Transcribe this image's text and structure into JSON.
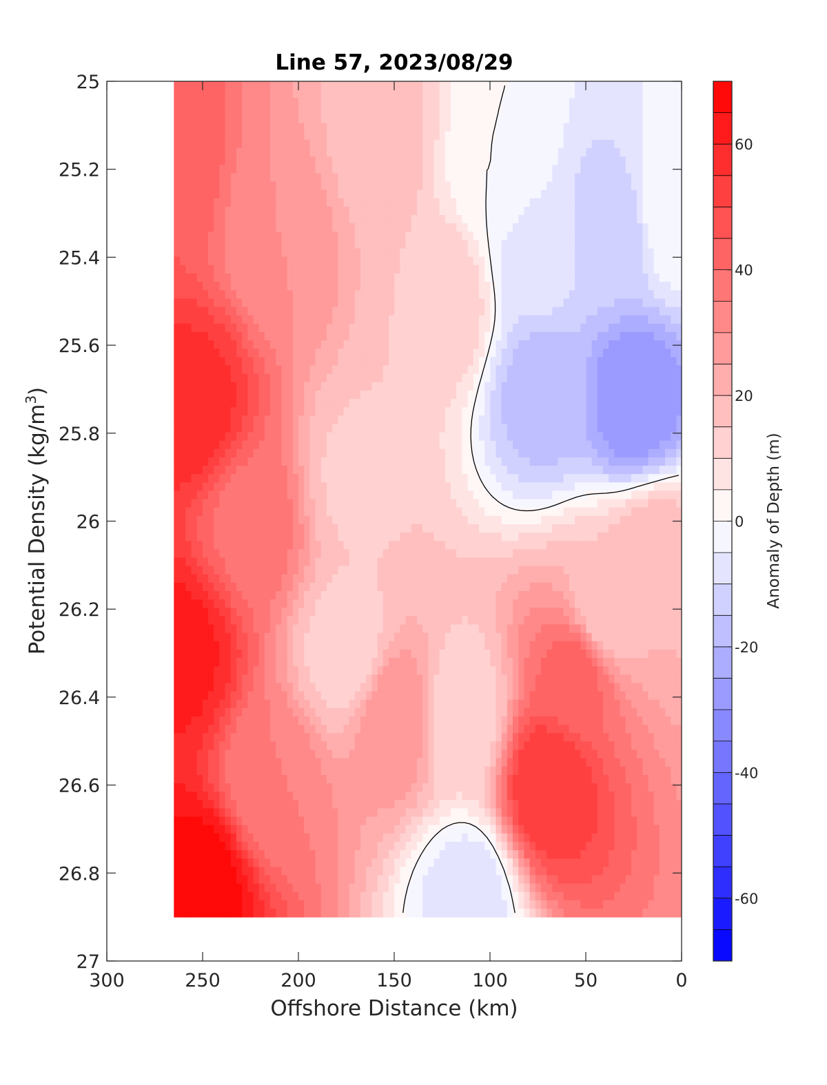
{
  "chart_data": {
    "type": "contour",
    "title": "Line 57, 2023/08/29",
    "xlabel": "Offshore Distance (km)",
    "ylabel_main": "Potential Density (kg/m",
    "ylabel_sup": "3",
    "ylabel_end": ")",
    "xlim": [
      0,
      300
    ],
    "x_reversed": true,
    "ylim": [
      25,
      27
    ],
    "y_reversed": true,
    "xticks": [
      300,
      250,
      200,
      150,
      100,
      50,
      0
    ],
    "xtick_labels": [
      "300",
      "250",
      "200",
      "150",
      "100",
      "50",
      "0"
    ],
    "yticks": [
      25,
      25.2,
      25.4,
      25.6,
      25.8,
      26,
      26.2,
      26.4,
      26.6,
      26.8,
      27
    ],
    "ytick_labels": [
      "25",
      "25.2",
      "25.4",
      "25.6",
      "25.8",
      "26",
      "26.2",
      "26.4",
      "26.6",
      "26.8",
      "27"
    ],
    "colorbar": {
      "label": "Anomaly of Depth (m)",
      "range": [
        -70,
        70
      ],
      "step": 5,
      "ticks": [
        60,
        40,
        20,
        0,
        -20,
        -40,
        -60
      ],
      "tick_labels": [
        "60",
        "40",
        "20",
        "0",
        "-20",
        "-40",
        "-60"
      ],
      "colormap": "blue-white-red"
    },
    "zero_contour": true,
    "data_coverage": {
      "x_range_km": [
        0,
        265
      ],
      "sigma_range": [
        25,
        26.9
      ]
    },
    "field_features": [
      {
        "x_km": 250,
        "sigma": 26.83,
        "value": 68
      },
      {
        "x_km": 262,
        "sigma": 26.3,
        "value": 62
      },
      {
        "x_km": 255,
        "sigma": 25.75,
        "value": 58
      },
      {
        "x_km": 270,
        "sigma": 25.2,
        "value": 45
      },
      {
        "x_km": 210,
        "sigma": 25.35,
        "value": 30
      },
      {
        "x_km": 225,
        "sigma": 26.0,
        "value": 38
      },
      {
        "x_km": 215,
        "sigma": 26.6,
        "value": 35
      },
      {
        "x_km": 160,
        "sigma": 25.15,
        "value": 18
      },
      {
        "x_km": 170,
        "sigma": 25.9,
        "value": 14
      },
      {
        "x_km": 175,
        "sigma": 26.3,
        "value": 12
      },
      {
        "x_km": 150,
        "sigma": 26.45,
        "value": 30
      },
      {
        "x_km": 125,
        "sigma": 25.5,
        "value": 15
      },
      {
        "x_km": 115,
        "sigma": 26.45,
        "value": 10
      },
      {
        "x_km": 112,
        "sigma": 26.85,
        "value": -8
      },
      {
        "x_km": 70,
        "sigma": 26.6,
        "value": 55
      },
      {
        "x_km": 55,
        "sigma": 26.35,
        "value": 42
      },
      {
        "x_km": 40,
        "sigma": 26.2,
        "value": 15
      },
      {
        "x_km": 15,
        "sigma": 26.1,
        "value": 20
      },
      {
        "x_km": 72,
        "sigma": 25.7,
        "value": -18
      },
      {
        "x_km": 75,
        "sigma": 25.4,
        "value": -8
      },
      {
        "x_km": 25,
        "sigma": 25.72,
        "value": -30
      },
      {
        "x_km": 35,
        "sigma": 25.35,
        "value": -14
      },
      {
        "x_km": 95,
        "sigma": 25.2,
        "value": 0
      },
      {
        "x_km": 5,
        "sigma": 25.3,
        "value": 0
      }
    ]
  }
}
